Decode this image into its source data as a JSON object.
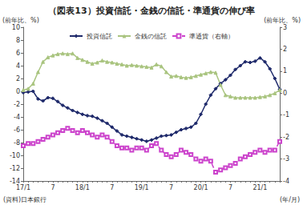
{
  "chart_data": {
    "type": "line",
    "title": "（図表13）投資信託・金銭の信託・準通貨の伸び率",
    "y_label": "(前年比、%)",
    "y2_label": "(前年比、%)",
    "x_label": "(年/月)",
    "source": "(資料)日本銀行",
    "categories": [
      "17/1",
      null,
      null,
      null,
      null,
      null,
      "7",
      null,
      null,
      null,
      null,
      null,
      "18/1",
      null,
      null,
      null,
      null,
      null,
      "7",
      null,
      null,
      null,
      null,
      null,
      "19/1",
      null,
      null,
      null,
      null,
      null,
      "7",
      null,
      null,
      null,
      null,
      null,
      "20/1",
      null,
      null,
      null,
      null,
      null,
      "7",
      null,
      null,
      null,
      null,
      null,
      "21/1",
      null,
      null,
      null,
      null
    ],
    "series": [
      {
        "name": "投資信託",
        "color": "#1f2a6b",
        "marker": "diamond",
        "line_style": "solid",
        "values": [
          -0.2,
          -0.1,
          0.0,
          -1.2,
          -1.5,
          -1.0,
          -1.1,
          -1.6,
          -2.2,
          -2.6,
          -3.0,
          -3.3,
          -3.6,
          -3.8,
          -3.9,
          -4.2,
          -4.6,
          -5.0,
          -5.6,
          -6.2,
          -6.8,
          -7.0,
          -7.2,
          -7.4,
          -7.6,
          -7.8,
          -7.6,
          -7.3,
          -7.0,
          -6.9,
          -6.8,
          -6.4,
          -6.0,
          -5.8,
          -5.6,
          -5.0,
          -3.6,
          -2.0,
          -0.6,
          0.4,
          1.2,
          1.8,
          2.5,
          3.4,
          4.0,
          4.6,
          4.5,
          4.7,
          5.2,
          4.6,
          3.5,
          2.0,
          0.3
        ]
      },
      {
        "name": "金銭の信託",
        "color": "#a9c47f",
        "marker": "triangle",
        "line_style": "solid",
        "values": [
          0.2,
          0.4,
          1.2,
          3.0,
          4.6,
          5.3,
          5.6,
          5.8,
          5.9,
          5.8,
          5.9,
          5.2,
          4.9,
          4.6,
          4.3,
          4.5,
          4.8,
          4.6,
          4.5,
          4.3,
          4.2,
          4.0,
          4.1,
          4.0,
          3.9,
          3.8,
          3.7,
          4.2,
          3.9,
          3.0,
          2.3,
          2.4,
          2.2,
          2.1,
          2.2,
          2.4,
          2.6,
          2.8,
          3.0,
          2.9,
          1.0,
          -0.6,
          -0.8,
          -1.0,
          -1.0,
          -1.0,
          -1.0,
          -1.0,
          -0.9,
          -0.8,
          -0.6,
          -0.3,
          0.2
        ]
      },
      {
        "name": "準通貨（右軸）",
        "color": "#cc44cc",
        "marker": "square-open",
        "line_style": "dashed",
        "axis": "y2",
        "values": [
          -2.4,
          -2.3,
          -2.3,
          -2.2,
          -2.1,
          -2.0,
          -1.9,
          -1.8,
          -1.7,
          -1.6,
          -1.7,
          -1.8,
          -1.7,
          -1.8,
          -1.9,
          -2.0,
          -1.9,
          -2.0,
          -2.2,
          -2.4,
          -2.5,
          -2.5,
          -2.6,
          -2.5,
          -2.5,
          -2.6,
          -2.4,
          -2.3,
          -2.6,
          -2.8,
          -2.9,
          -2.8,
          -2.6,
          -2.7,
          -2.8,
          -3.0,
          -3.1,
          -3.0,
          -3.1,
          -3.6,
          -3.5,
          -3.4,
          -3.3,
          -3.2,
          -3.0,
          -2.9,
          -2.8,
          -2.7,
          -2.6,
          -2.7,
          -2.6,
          -2.6,
          -2.2
        ]
      }
    ],
    "ylim": [
      -14,
      10
    ],
    "yticks": [
      -14,
      -12,
      -10,
      -8,
      -6,
      -4,
      -2,
      0,
      2,
      4,
      6,
      8,
      10
    ],
    "y2lim": [
      -4,
      3
    ],
    "y2ticks": [
      -4,
      -3,
      -2,
      -1,
      0,
      1,
      2,
      3
    ],
    "grid": false,
    "legend": "top"
  }
}
